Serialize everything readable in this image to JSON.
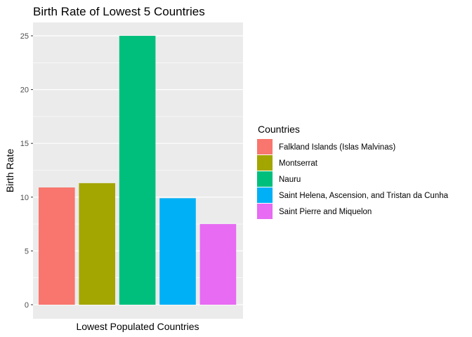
{
  "chart_data": {
    "type": "bar",
    "title": "Birth Rate of Lowest 5 Countries",
    "xlabel": "Lowest Populated Countries",
    "ylabel": "Birth Rate",
    "ylim": [
      -1.25,
      26.25
    ],
    "yticks": [
      0,
      5,
      10,
      15,
      20,
      25
    ],
    "grid": true,
    "legend": {
      "title": "Countries",
      "position": "right"
    },
    "series": [
      {
        "name": "Falkland Islands (Islas Malvinas)",
        "value": 10.9,
        "color": "#F8766D"
      },
      {
        "name": "Montserrat",
        "value": 11.3,
        "color": "#A3A500"
      },
      {
        "name": "Nauru",
        "value": 25.0,
        "color": "#00BF7D"
      },
      {
        "name": "Saint Helena, Ascension, and Tristan da Cunha",
        "value": 9.9,
        "color": "#00B0F6"
      },
      {
        "name": "Saint Pierre and Miquelon",
        "value": 7.5,
        "color": "#E76BF3"
      }
    ]
  }
}
